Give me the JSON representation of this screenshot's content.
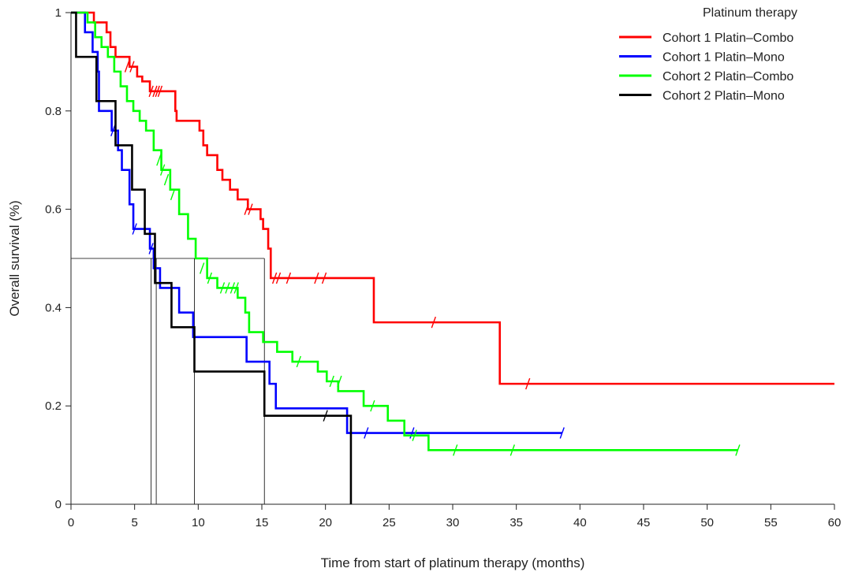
{
  "chart_data": {
    "type": "line",
    "subtype": "kaplan-meier-step",
    "title": "",
    "xlabel": "Time from start of platinum therapy (months)",
    "ylabel": "Overall survival (%)",
    "xlim": [
      0,
      60
    ],
    "ylim": [
      0,
      1
    ],
    "xticks": [
      0,
      5,
      10,
      15,
      20,
      25,
      30,
      35,
      40,
      45,
      50,
      55,
      60
    ],
    "yticks": [
      0,
      0.2,
      0.4,
      0.6,
      0.8,
      1
    ],
    "ytick_labels": [
      "0",
      "0.2",
      "0.4",
      "0.6",
      "0.8",
      "1"
    ],
    "grid": false,
    "legend": {
      "title": "Platinum therapy",
      "position": "top-right"
    },
    "median_reference": {
      "survival": 0.5,
      "times": [
        6.3,
        6.7,
        9.7,
        15.2
      ]
    },
    "series": [
      {
        "name": "Cohort 1 Platin–Combo",
        "color": "#ff0000",
        "steps": [
          [
            0,
            1
          ],
          [
            1.8,
            0.98
          ],
          [
            2.8,
            0.96
          ],
          [
            3.1,
            0.93
          ],
          [
            3.5,
            0.91
          ],
          [
            4.6,
            0.89
          ],
          [
            5.2,
            0.87
          ],
          [
            5.6,
            0.86
          ],
          [
            6.2,
            0.84
          ],
          [
            8.2,
            0.8
          ],
          [
            8.3,
            0.78
          ],
          [
            9.5,
            0.78
          ],
          [
            10.1,
            0.76
          ],
          [
            10.4,
            0.73
          ],
          [
            10.7,
            0.71
          ],
          [
            11.5,
            0.68
          ],
          [
            11.9,
            0.66
          ],
          [
            12.5,
            0.64
          ],
          [
            13.1,
            0.62
          ],
          [
            13.9,
            0.6
          ],
          [
            14.9,
            0.58
          ],
          [
            15.1,
            0.56
          ],
          [
            15.5,
            0.52
          ],
          [
            15.7,
            0.46
          ],
          [
            23.8,
            0.37
          ],
          [
            33.7,
            0.245
          ],
          [
            60,
            0.245
          ]
        ],
        "censors": [
          [
            4.4,
            0.89
          ],
          [
            4.8,
            0.89
          ],
          [
            6.3,
            0.84
          ],
          [
            6.6,
            0.84
          ],
          [
            6.8,
            0.84
          ],
          [
            7.0,
            0.84
          ],
          [
            13.8,
            0.6
          ],
          [
            14.1,
            0.6
          ],
          [
            16.0,
            0.46
          ],
          [
            16.3,
            0.46
          ],
          [
            17.1,
            0.46
          ],
          [
            19.3,
            0.46
          ],
          [
            19.9,
            0.46
          ],
          [
            28.5,
            0.37
          ],
          [
            35.9,
            0.245
          ]
        ]
      },
      {
        "name": "Cohort 1 Platin–Mono",
        "color": "#0000ff",
        "steps": [
          [
            0,
            1
          ],
          [
            1.1,
            0.96
          ],
          [
            1.7,
            0.92
          ],
          [
            2.1,
            0.88
          ],
          [
            2.2,
            0.8
          ],
          [
            3.2,
            0.76
          ],
          [
            3.7,
            0.72
          ],
          [
            4.0,
            0.68
          ],
          [
            4.6,
            0.61
          ],
          [
            4.9,
            0.56
          ],
          [
            6.2,
            0.52
          ],
          [
            6.5,
            0.48
          ],
          [
            7.0,
            0.44
          ],
          [
            8.5,
            0.39
          ],
          [
            9.6,
            0.34
          ],
          [
            13.8,
            0.29
          ],
          [
            15.6,
            0.245
          ],
          [
            16.1,
            0.195
          ],
          [
            21.7,
            0.145
          ],
          [
            38.6,
            0.145
          ]
        ],
        "censors": [
          [
            3.3,
            0.76
          ],
          [
            5.0,
            0.56
          ],
          [
            6.3,
            0.52
          ],
          [
            23.2,
            0.145
          ],
          [
            26.8,
            0.145
          ],
          [
            38.6,
            0.145
          ]
        ]
      },
      {
        "name": "Cohort 2 Platin–Combo",
        "color": "#00ff00",
        "steps": [
          [
            0,
            1
          ],
          [
            1.3,
            0.98
          ],
          [
            1.9,
            0.95
          ],
          [
            2.4,
            0.93
          ],
          [
            2.9,
            0.91
          ],
          [
            3.4,
            0.88
          ],
          [
            3.9,
            0.85
          ],
          [
            4.4,
            0.82
          ],
          [
            4.9,
            0.8
          ],
          [
            5.4,
            0.78
          ],
          [
            5.9,
            0.76
          ],
          [
            6.5,
            0.72
          ],
          [
            7.1,
            0.68
          ],
          [
            7.8,
            0.64
          ],
          [
            8.5,
            0.59
          ],
          [
            9.2,
            0.54
          ],
          [
            9.8,
            0.5
          ],
          [
            10.7,
            0.46
          ],
          [
            11.5,
            0.44
          ],
          [
            13.1,
            0.42
          ],
          [
            13.7,
            0.39
          ],
          [
            14.0,
            0.35
          ],
          [
            15.1,
            0.33
          ],
          [
            16.2,
            0.31
          ],
          [
            17.4,
            0.29
          ],
          [
            19.4,
            0.27
          ],
          [
            20.1,
            0.25
          ],
          [
            21.0,
            0.23
          ],
          [
            23.0,
            0.2
          ],
          [
            24.9,
            0.17
          ],
          [
            26.2,
            0.14
          ],
          [
            28.1,
            0.11
          ],
          [
            52.4,
            0.11
          ]
        ],
        "censors": [
          [
            6.9,
            0.7
          ],
          [
            7.2,
            0.68
          ],
          [
            7.5,
            0.66
          ],
          [
            8.0,
            0.63
          ],
          [
            10.3,
            0.48
          ],
          [
            10.9,
            0.46
          ],
          [
            11.9,
            0.44
          ],
          [
            12.3,
            0.44
          ],
          [
            12.7,
            0.44
          ],
          [
            13.0,
            0.44
          ],
          [
            17.9,
            0.29
          ],
          [
            20.5,
            0.25
          ],
          [
            21.1,
            0.25
          ],
          [
            23.7,
            0.2
          ],
          [
            27.0,
            0.14
          ],
          [
            30.2,
            0.11
          ],
          [
            34.7,
            0.11
          ],
          [
            52.4,
            0.11
          ]
        ]
      },
      {
        "name": "Cohort 2 Platin–Mono",
        "color": "#000000",
        "steps": [
          [
            0,
            1
          ],
          [
            0.4,
            0.91
          ],
          [
            2.0,
            0.82
          ],
          [
            3.5,
            0.73
          ],
          [
            4.8,
            0.64
          ],
          [
            5.8,
            0.55
          ],
          [
            6.6,
            0.45
          ],
          [
            7.9,
            0.36
          ],
          [
            9.7,
            0.27
          ],
          [
            15.2,
            0.18
          ],
          [
            22.0,
            0.0
          ]
        ],
        "censors": [
          [
            20.0,
            0.18
          ]
        ]
      }
    ]
  }
}
